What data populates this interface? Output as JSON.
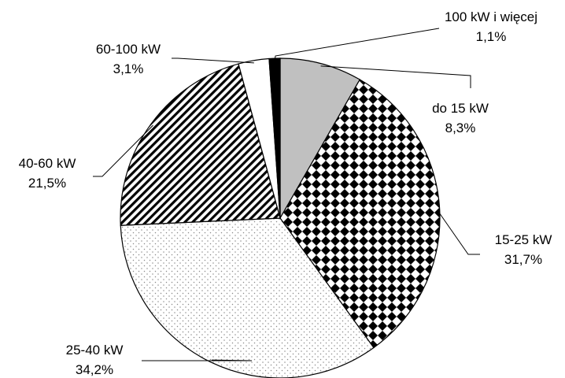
{
  "chart_data": {
    "type": "pie",
    "title": "",
    "start": "12 o'clock, clockwise",
    "slices": [
      {
        "label": "do 15 kW",
        "value": 8.3,
        "value_label": "8,3%",
        "pattern": "solid-gray",
        "color": "#c0c0c0"
      },
      {
        "label": "15-25 kW",
        "value": 31.7,
        "value_label": "31,7%",
        "pattern": "diamond-check",
        "color": "#000000"
      },
      {
        "label": "25-40 kW",
        "value": 34.2,
        "value_label": "34,2%",
        "pattern": "fine-dots",
        "color": "#9a9a9a"
      },
      {
        "label": "40-60 kW",
        "value": 21.5,
        "value_label": "21,5%",
        "pattern": "diagonal-stripes",
        "color": "#000000"
      },
      {
        "label": "60-100 kW",
        "value": 3.1,
        "value_label": "3,1%",
        "pattern": "white",
        "color": "#ffffff"
      },
      {
        "label": "100 kW i więcej",
        "value": 1.1,
        "value_label": "1,1%",
        "pattern": "solid-black",
        "color": "#000000"
      }
    ]
  }
}
